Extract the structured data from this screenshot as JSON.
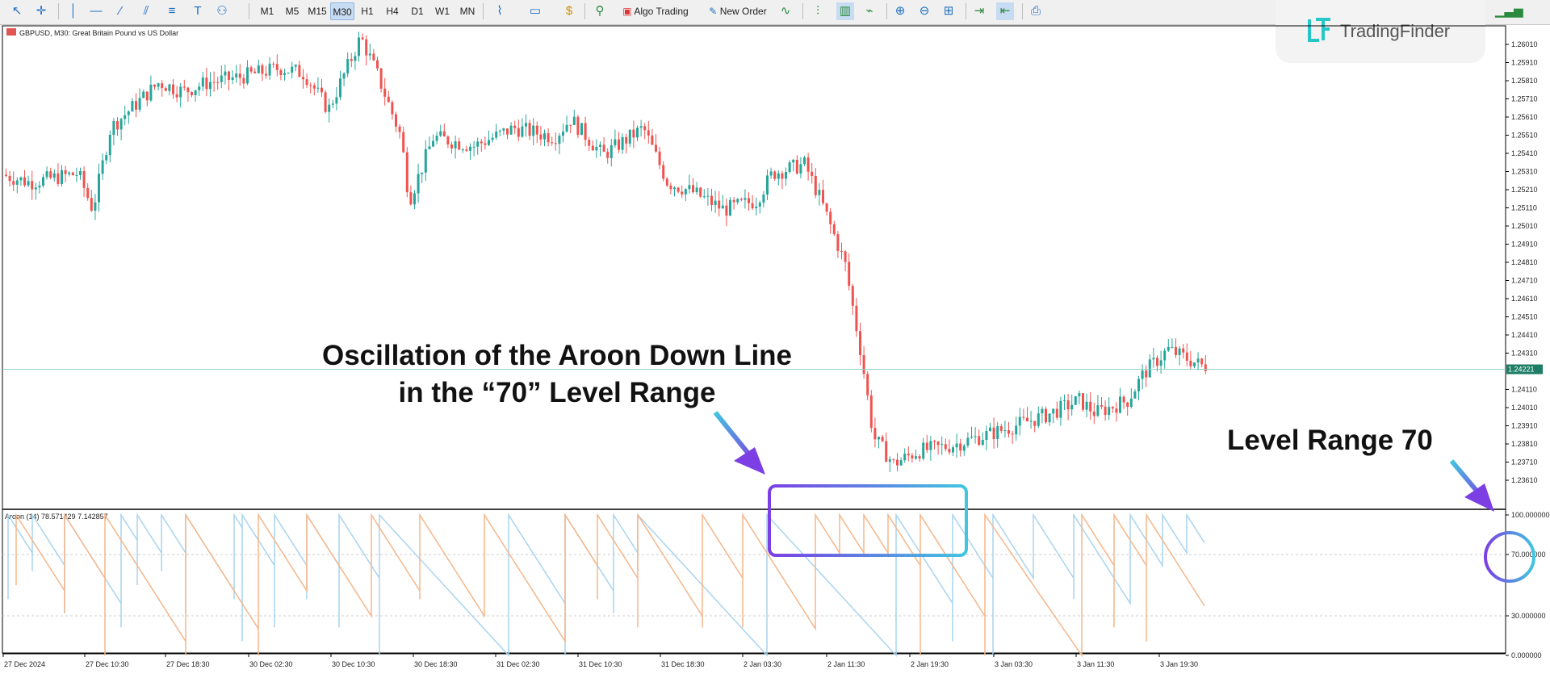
{
  "toolbar": {
    "timeframes": [
      "M1",
      "M5",
      "M15",
      "M30",
      "H1",
      "H4",
      "D1",
      "W1",
      "MN"
    ],
    "active_timeframe": "M30",
    "algo_trading_label": "Algo Trading",
    "new_order_label": "New Order"
  },
  "logo": {
    "brand": "TradingFinder"
  },
  "chart": {
    "symbol_label": "GBPUSD, M30:  Great Britain Pound vs US Dollar",
    "current_price_label": "1.24221",
    "current_price": 1.24221,
    "price_ticks": [
      "1.26010",
      "1.25910",
      "1.25810",
      "1.25710",
      "1.25610",
      "1.25510",
      "1.25410",
      "1.25310",
      "1.25210",
      "1.25110",
      "1.25010",
      "1.24910",
      "1.24810",
      "1.24710",
      "1.24610",
      "1.24510",
      "1.24410",
      "1.24310",
      "1.24110",
      "1.24010",
      "1.23910",
      "1.23810",
      "1.23710",
      "1.23610"
    ],
    "time_ticks": [
      "27 Dec 2024",
      "27 Dec 10:30",
      "27 Dec 18:30",
      "30 Dec 02:30",
      "30 Dec 10:30",
      "30 Dec 18:30",
      "31 Dec 02:30",
      "31 Dec 10:30",
      "31 Dec 18:30",
      "2 Jan 03:30",
      "2 Jan 11:30",
      "2 Jan 19:30",
      "3 Jan 03:30",
      "3 Jan 11:30",
      "3 Jan 19:30"
    ],
    "indicator_label": "Aroon (14) 78.571429 7.142857",
    "indicator_ticks": [
      "100.000000",
      "70.000000",
      "30.000000",
      "0.000000"
    ],
    "colors": {
      "bull": "#26a69a",
      "bear": "#ef5350",
      "aroon_up": "#a8d4ef",
      "aroon_down": "#f5b68a",
      "price_line": "#8fd0c4"
    }
  },
  "annotations": {
    "oscillation_line1": "Oscillation of the Aroon Down Line",
    "oscillation_line2": "in the “70” Level Range",
    "level_range": "Level Range 70"
  }
}
